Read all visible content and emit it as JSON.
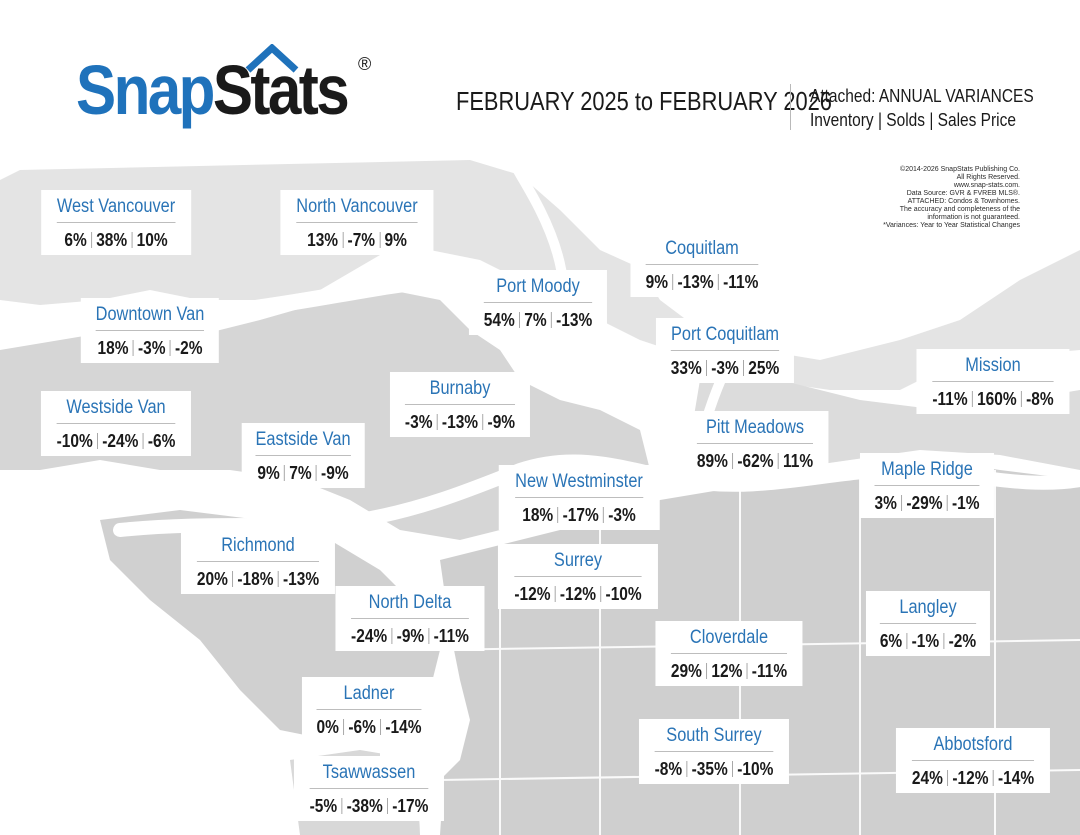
{
  "brand": {
    "name_part1": "Snap",
    "name_part2": "Stats",
    "registered": "®"
  },
  "header": {
    "date_range": "FEBRUARY 2025 to FEBRUARY 2026",
    "attached_label": "Attached: ANNUAL VARIANCES",
    "metrics_label": "Inventory | Solds | Sales Price"
  },
  "copyright_lines": [
    "©2014-2026 SnapStats Publishing Co.",
    "All Rights Reserved.",
    "www.snap-stats.com.",
    "Data Source: GVR & FVREB MLS®.",
    "ATTACHED: Condos & Townhomes.",
    "The accuracy and completeness of the",
    "information is not guaranteed.",
    "*Variances: Year to Year Statistical Changes"
  ],
  "colors": {
    "brand_blue": "#1f72bb",
    "label_blue": "#2a74b6",
    "land_gray": "#cfcfcf",
    "land_dark": "#bdbdbd",
    "water": "#ffffff"
  },
  "regions": [
    {
      "name": "West Vancouver",
      "inventory": "6%",
      "solds": "38%",
      "price": "10%"
    },
    {
      "name": "North Vancouver",
      "inventory": "13%",
      "solds": "-7%",
      "price": "9%"
    },
    {
      "name": "Coquitlam",
      "inventory": "9%",
      "solds": "-13%",
      "price": "-11%"
    },
    {
      "name": "Port Moody",
      "inventory": "54%",
      "solds": "7%",
      "price": "-13%"
    },
    {
      "name": "Downtown Van",
      "inventory": "18%",
      "solds": "-3%",
      "price": "-2%"
    },
    {
      "name": "Port Coquitlam",
      "inventory": "33%",
      "solds": "-3%",
      "price": "25%"
    },
    {
      "name": "Mission",
      "inventory": "-11%",
      "solds": "160%",
      "price": "-8%"
    },
    {
      "name": "Burnaby",
      "inventory": "-3%",
      "solds": "-13%",
      "price": "-9%"
    },
    {
      "name": "Westside Van",
      "inventory": "-10%",
      "solds": "-24%",
      "price": "-6%"
    },
    {
      "name": "Pitt Meadows",
      "inventory": "89%",
      "solds": "-62%",
      "price": "11%"
    },
    {
      "name": "Eastside Van",
      "inventory": "9%",
      "solds": "7%",
      "price": "-9%"
    },
    {
      "name": "Maple Ridge",
      "inventory": "3%",
      "solds": "-29%",
      "price": "-1%"
    },
    {
      "name": "New Westminster",
      "inventory": "18%",
      "solds": "-17%",
      "price": "-3%"
    },
    {
      "name": "Richmond",
      "inventory": "20%",
      "solds": "-18%",
      "price": "-13%"
    },
    {
      "name": "Surrey",
      "inventory": "-12%",
      "solds": "-12%",
      "price": "-10%"
    },
    {
      "name": "North Delta",
      "inventory": "-24%",
      "solds": "-9%",
      "price": "-11%"
    },
    {
      "name": "Langley",
      "inventory": "6%",
      "solds": "-1%",
      "price": "-2%"
    },
    {
      "name": "Cloverdale",
      "inventory": "29%",
      "solds": "12%",
      "price": "-11%"
    },
    {
      "name": "Ladner",
      "inventory": "0%",
      "solds": "-6%",
      "price": "-14%"
    },
    {
      "name": "South Surrey",
      "inventory": "-8%",
      "solds": "-35%",
      "price": "-10%"
    },
    {
      "name": "Abbotsford",
      "inventory": "24%",
      "solds": "-12%",
      "price": "-14%"
    },
    {
      "name": "Tsawwassen",
      "inventory": "-5%",
      "solds": "-38%",
      "price": "-17%"
    }
  ]
}
